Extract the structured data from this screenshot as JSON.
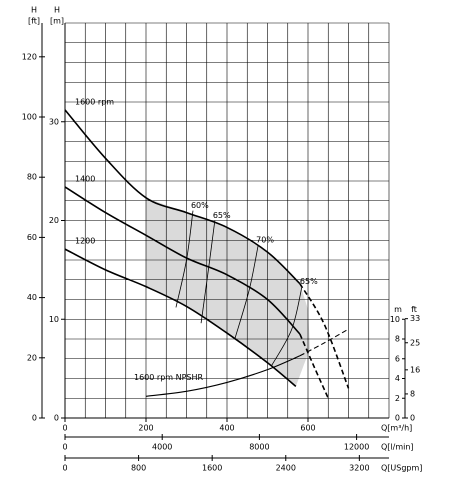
{
  "chart_data": {
    "type": "line",
    "x_label": "Q[m³/h]",
    "xlim": [
      0,
      800
    ],
    "xticks": [
      0,
      200,
      400,
      600
    ],
    "xgrid": [
      0,
      50,
      100,
      150,
      200,
      250,
      300,
      350,
      400,
      450,
      500,
      550,
      600,
      650,
      700,
      750,
      800
    ],
    "y_title": "H",
    "y_label": "[m]",
    "ylim": [
      0,
      40
    ],
    "yticks": [
      0,
      10,
      20,
      30
    ],
    "ygrid": [
      0,
      2,
      4,
      6,
      8,
      10,
      12,
      14,
      16,
      18,
      20,
      22,
      24,
      26,
      28,
      30,
      32,
      34,
      36,
      38,
      40
    ],
    "y_ft": {
      "title": "H",
      "label": "[ft]",
      "lim": [
        0,
        131.23
      ],
      "ticks": [
        0,
        20,
        40,
        60,
        80,
        100,
        120
      ]
    },
    "x_lmin": {
      "label": "Q[l/min]",
      "lim": [
        0,
        13333.33
      ],
      "ticks": [
        0,
        4000,
        8000,
        12000
      ]
    },
    "x_gpm": {
      "label": "Q[USgpm]",
      "lim": [
        0,
        3522.3
      ],
      "ticks": [
        0,
        800,
        1600,
        2400,
        3200
      ]
    },
    "npsh_m": {
      "label": "m",
      "lim": [
        0,
        10
      ],
      "ticks": [
        0,
        2,
        4,
        6,
        8,
        10
      ]
    },
    "npsh_ft": {
      "label": "ft",
      "lim": [
        0,
        32.81
      ],
      "ticks": [
        0,
        8,
        16,
        25,
        33
      ]
    },
    "efficiency_region": {
      "color": "#dadada",
      "x": [
        200,
        300,
        400,
        500,
        580,
        600,
        605,
        590,
        570,
        500,
        400,
        300,
        200
      ],
      "values": [
        22.3,
        20.8,
        19.3,
        16.8,
        13.6,
        11,
        7,
        5.4,
        3.2,
        5.6,
        8.6,
        11.3,
        13.3
      ]
    },
    "series": [
      {
        "name": "1600 rpm",
        "color": "#000000",
        "x": [
          0,
          100,
          200,
          300,
          400,
          500,
          580
        ],
        "values": [
          31.2,
          26.3,
          22.3,
          20.8,
          19.3,
          16.8,
          13.6
        ]
      },
      {
        "color": "#000000",
        "style": "dashed",
        "x": [
          580,
          640,
          700
        ],
        "values": [
          13.6,
          9.5,
          3
        ]
      },
      {
        "name": "1400",
        "color": "#000000",
        "x": [
          0,
          100,
          200,
          300,
          400,
          500,
          580
        ],
        "values": [
          23.4,
          20.8,
          18.5,
          16.2,
          14.5,
          12,
          8.5
        ]
      },
      {
        "color": "#000000",
        "style": "dashed",
        "x": [
          580,
          615,
          650
        ],
        "values": [
          8.5,
          5.2,
          2
        ]
      },
      {
        "name": "1200",
        "color": "#000000",
        "x": [
          0,
          100,
          200,
          300,
          400,
          500,
          570
        ],
        "values": [
          17.1,
          15,
          13.3,
          11.3,
          8.6,
          5.6,
          3.2
        ]
      }
    ],
    "efficiency_lines": [
      {
        "name": "60%",
        "x": [
          316,
          300,
          274
        ],
        "values": [
          21,
          16,
          11.2
        ]
      },
      {
        "name": "65%",
        "x": [
          370,
          355,
          336
        ],
        "values": [
          20,
          15.3,
          9.6
        ]
      },
      {
        "name": "70%",
        "x": [
          477,
          455,
          420
        ],
        "values": [
          17.5,
          13,
          8.1
        ]
      },
      {
        "name": "65%",
        "x": [
          585,
          560,
          510
        ],
        "values": [
          13.3,
          9,
          5.3
        ]
      }
    ],
    "npshr": [
      {
        "name": "1600 rpm NPSHR",
        "x": [
          200,
          300,
          400,
          500,
          580
        ],
        "values": [
          2.2,
          2.7,
          3.6,
          4.9,
          6.3
        ]
      },
      {
        "style": "dashed",
        "x": [
          580,
          640,
          700
        ],
        "values": [
          6.3,
          7.6,
          9
        ]
      }
    ]
  }
}
